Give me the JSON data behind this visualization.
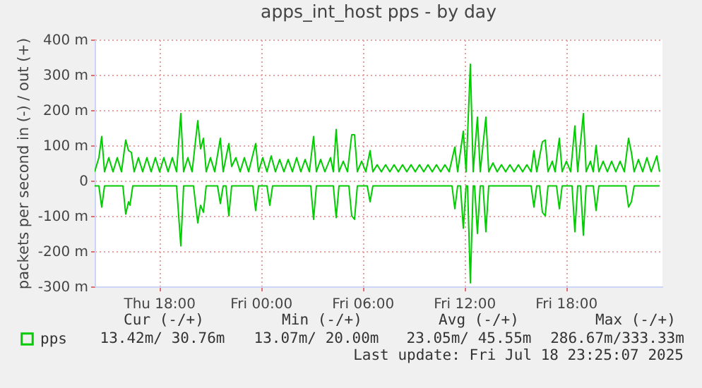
{
  "chart_data": {
    "type": "line",
    "title": "apps_int_host pps - by day",
    "ylabel": "packets per second in (-) / out (+)",
    "xlim": [
      "2025-07-17T14:12",
      "2025-07-18T23:42"
    ],
    "xticks": [
      {
        "value": "2025-07-17T18:00",
        "label": "Thu 18:00"
      },
      {
        "value": "2025-07-18T00:00",
        "label": "Fri 00:00"
      },
      {
        "value": "2025-07-18T06:00",
        "label": "Fri 06:00"
      },
      {
        "value": "2025-07-18T12:00",
        "label": "Fri 12:00"
      },
      {
        "value": "2025-07-18T18:00",
        "label": "Fri 18:00"
      }
    ],
    "ylim": [
      -300,
      400
    ],
    "yticks": [
      {
        "value": -300,
        "label": "-300 m"
      },
      {
        "value": -200,
        "label": "-200 m"
      },
      {
        "value": -100,
        "label": "-100 m"
      },
      {
        "value": 0,
        "label": "0"
      },
      {
        "value": 100,
        "label": "100 m"
      },
      {
        "value": 200,
        "label": "200 m"
      },
      {
        "value": 300,
        "label": "300 m"
      },
      {
        "value": 400,
        "label": "400 m"
      }
    ],
    "grid": true,
    "legend": "bottom",
    "marker": "none",
    "line_style": "solid",
    "series": [
      {
        "name": "pps",
        "color": "#00cc00",
        "x": [
          "2025-07-17T14:12",
          "2025-07-17T14:27",
          "2025-07-17T14:37",
          "2025-07-17T14:47",
          "2025-07-17T15:02",
          "2025-07-17T15:17",
          "2025-07-17T15:32",
          "2025-07-17T15:47",
          "2025-07-17T16:02",
          "2025-07-17T16:12",
          "2025-07-17T16:22",
          "2025-07-17T16:32",
          "2025-07-17T16:47",
          "2025-07-17T17:02",
          "2025-07-17T17:17",
          "2025-07-17T17:32",
          "2025-07-17T17:47",
          "2025-07-17T18:02",
          "2025-07-17T18:17",
          "2025-07-17T18:32",
          "2025-07-17T18:47",
          "2025-07-17T19:02",
          "2025-07-17T19:17",
          "2025-07-17T19:27",
          "2025-07-17T19:42",
          "2025-07-17T19:57",
          "2025-07-17T20:17",
          "2025-07-17T20:27",
          "2025-07-17T20:37",
          "2025-07-17T20:47",
          "2025-07-17T21:02",
          "2025-07-17T21:17",
          "2025-07-17T21:37",
          "2025-07-17T21:47",
          "2025-07-17T22:07",
          "2025-07-17T22:17",
          "2025-07-17T22:32",
          "2025-07-17T22:47",
          "2025-07-17T23:02",
          "2025-07-17T23:17",
          "2025-07-17T23:42",
          "2025-07-17T23:52",
          "2025-07-18T00:07",
          "2025-07-18T00:22",
          "2025-07-18T00:37",
          "2025-07-18T00:52",
          "2025-07-18T01:07",
          "2025-07-18T01:22",
          "2025-07-18T01:37",
          "2025-07-18T01:52",
          "2025-07-18T02:07",
          "2025-07-18T02:22",
          "2025-07-18T02:37",
          "2025-07-18T02:52",
          "2025-07-18T03:07",
          "2025-07-18T03:17",
          "2025-07-18T03:32",
          "2025-07-18T03:47",
          "2025-07-18T04:07",
          "2025-07-18T04:17",
          "2025-07-18T04:27",
          "2025-07-18T04:37",
          "2025-07-18T04:52",
          "2025-07-18T05:07",
          "2025-07-18T05:22",
          "2025-07-18T05:32",
          "2025-07-18T05:42",
          "2025-07-18T05:57",
          "2025-07-18T06:12",
          "2025-07-18T06:27",
          "2025-07-18T06:37",
          "2025-07-18T06:52",
          "2025-07-18T07:07",
          "2025-07-18T07:22",
          "2025-07-18T07:37",
          "2025-07-18T07:52",
          "2025-07-18T08:07",
          "2025-07-18T08:22",
          "2025-07-18T08:37",
          "2025-07-18T08:52",
          "2025-07-18T09:07",
          "2025-07-18T09:22",
          "2025-07-18T09:37",
          "2025-07-18T09:52",
          "2025-07-18T10:07",
          "2025-07-18T10:22",
          "2025-07-18T10:37",
          "2025-07-18T10:52",
          "2025-07-18T11:07",
          "2025-07-18T11:27",
          "2025-07-18T11:37",
          "2025-07-18T11:57",
          "2025-07-18T12:07",
          "2025-07-18T12:22",
          "2025-07-18T12:32",
          "2025-07-18T12:47",
          "2025-07-18T12:57",
          "2025-07-18T13:17",
          "2025-07-18T13:27",
          "2025-07-18T13:42",
          "2025-07-18T13:57",
          "2025-07-18T14:12",
          "2025-07-18T14:27",
          "2025-07-18T14:42",
          "2025-07-18T14:57",
          "2025-07-18T15:12",
          "2025-07-18T15:27",
          "2025-07-18T15:42",
          "2025-07-18T15:57",
          "2025-07-18T16:07",
          "2025-07-18T16:17",
          "2025-07-18T16:37",
          "2025-07-18T16:47",
          "2025-07-18T16:57",
          "2025-07-18T17:12",
          "2025-07-18T17:22",
          "2025-07-18T17:37",
          "2025-07-18T17:47",
          "2025-07-18T18:02",
          "2025-07-18T18:17",
          "2025-07-18T18:32",
          "2025-07-18T18:42",
          "2025-07-18T19:02",
          "2025-07-18T19:12",
          "2025-07-18T19:27",
          "2025-07-18T19:37",
          "2025-07-18T19:47",
          "2025-07-18T19:57",
          "2025-07-18T20:12",
          "2025-07-18T20:27",
          "2025-07-18T20:42",
          "2025-07-18T20:57",
          "2025-07-18T21:12",
          "2025-07-18T21:27",
          "2025-07-18T21:42",
          "2025-07-18T21:52",
          "2025-07-18T22:02",
          "2025-07-18T22:17",
          "2025-07-18T22:32",
          "2025-07-18T22:47",
          "2025-07-18T23:02",
          "2025-07-18T23:22",
          "2025-07-18T23:32"
        ],
        "values": [
          25,
          65,
          125,
          25,
          65,
          25,
          65,
          25,
          115,
          85,
          80,
          25,
          65,
          25,
          65,
          25,
          65,
          25,
          65,
          25,
          65,
          25,
          190,
          25,
          65,
          25,
          170,
          90,
          120,
          25,
          65,
          25,
          120,
          25,
          105,
          40,
          65,
          25,
          65,
          25,
          105,
          25,
          65,
          25,
          70,
          25,
          60,
          25,
          60,
          25,
          65,
          25,
          60,
          25,
          125,
          25,
          60,
          25,
          65,
          25,
          145,
          25,
          55,
          25,
          130,
          130,
          25,
          55,
          25,
          85,
          25,
          45,
          25,
          45,
          25,
          45,
          25,
          45,
          25,
          45,
          25,
          45,
          25,
          45,
          25,
          45,
          25,
          45,
          25,
          95,
          25,
          140,
          25,
          330,
          25,
          180,
          25,
          180,
          25,
          50,
          25,
          45,
          25,
          45,
          25,
          45,
          25,
          45,
          25,
          85,
          25,
          110,
          115,
          25,
          55,
          25,
          120,
          25,
          55,
          25,
          155,
          25,
          190,
          25,
          55,
          25,
          100,
          25,
          55,
          25,
          55,
          25,
          55,
          25,
          120,
          80,
          25,
          60,
          25,
          65,
          25,
          70,
          25
        ]
      },
      {
        "color": "#00cc00",
        "x": [
          "2025-07-17T14:12",
          "2025-07-17T14:27",
          "2025-07-17T14:37",
          "2025-07-17T14:47",
          "2025-07-17T15:52",
          "2025-07-17T16:02",
          "2025-07-17T16:12",
          "2025-07-17T16:17",
          "2025-07-17T16:27",
          "2025-07-17T19:02",
          "2025-07-17T19:17",
          "2025-07-17T19:27",
          "2025-07-17T20:02",
          "2025-07-17T20:17",
          "2025-07-17T20:27",
          "2025-07-17T20:37",
          "2025-07-17T20:47",
          "2025-07-17T21:27",
          "2025-07-17T21:37",
          "2025-07-17T21:47",
          "2025-07-17T21:57",
          "2025-07-17T22:07",
          "2025-07-17T22:17",
          "2025-07-17T23:32",
          "2025-07-17T23:42",
          "2025-07-17T23:52",
          "2025-07-18T00:22",
          "2025-07-18T00:32",
          "2025-07-18T00:42",
          "2025-07-18T02:57",
          "2025-07-18T03:07",
          "2025-07-18T03:17",
          "2025-07-18T04:17",
          "2025-07-18T04:27",
          "2025-07-18T04:37",
          "2025-07-18T05:12",
          "2025-07-18T05:22",
          "2025-07-18T05:32",
          "2025-07-18T05:42",
          "2025-07-18T06:17",
          "2025-07-18T06:27",
          "2025-07-18T06:37",
          "2025-07-18T11:17",
          "2025-07-18T11:27",
          "2025-07-18T11:37",
          "2025-07-18T11:47",
          "2025-07-18T11:57",
          "2025-07-18T12:07",
          "2025-07-18T12:12",
          "2025-07-18T12:22",
          "2025-07-18T12:32",
          "2025-07-18T12:37",
          "2025-07-18T12:47",
          "2025-07-18T12:57",
          "2025-07-18T13:07",
          "2025-07-18T13:17",
          "2025-07-18T13:27",
          "2025-07-18T15:57",
          "2025-07-18T16:07",
          "2025-07-18T16:17",
          "2025-07-18T16:27",
          "2025-07-18T16:37",
          "2025-07-18T16:47",
          "2025-07-18T16:57",
          "2025-07-18T17:27",
          "2025-07-18T17:37",
          "2025-07-18T17:47",
          "2025-07-18T18:22",
          "2025-07-18T18:32",
          "2025-07-18T18:42",
          "2025-07-18T18:52",
          "2025-07-18T19:02",
          "2025-07-18T19:12",
          "2025-07-18T19:37",
          "2025-07-18T19:47",
          "2025-07-18T19:57",
          "2025-07-18T21:32",
          "2025-07-18T21:42",
          "2025-07-18T21:52",
          "2025-07-18T22:02",
          "2025-07-18T23:32"
        ],
        "values": [
          -15,
          -15,
          -75,
          -15,
          -15,
          -95,
          -60,
          -70,
          -15,
          -15,
          -185,
          -15,
          -15,
          -120,
          -70,
          -90,
          -15,
          -15,
          -65,
          -15,
          -15,
          -100,
          -15,
          -15,
          -85,
          -15,
          -15,
          -70,
          -15,
          -15,
          -110,
          -15,
          -15,
          -105,
          -15,
          -15,
          -100,
          -110,
          -15,
          -15,
          -60,
          -15,
          -15,
          -80,
          -15,
          -15,
          -135,
          -15,
          -15,
          -290,
          -15,
          -15,
          -150,
          -15,
          -15,
          -145,
          -15,
          -15,
          -75,
          -15,
          -15,
          -90,
          -100,
          -15,
          -15,
          -80,
          -15,
          -15,
          -145,
          -15,
          -15,
          -155,
          -15,
          -15,
          -85,
          -15,
          -15,
          -75,
          -60,
          -15,
          -15
        ]
      }
    ],
    "annotations": [
      "Cur (-/+)",
      "Min (-/+)",
      "Avg (-/+)",
      "Max (-/+)",
      "13.42m/ 30.76m",
      "13.07m/ 20.00m",
      "23.05m/ 45.55m",
      "286.67m/333.33m",
      "Last update: Fri Jul 18 23:25:07 2025"
    ]
  }
}
